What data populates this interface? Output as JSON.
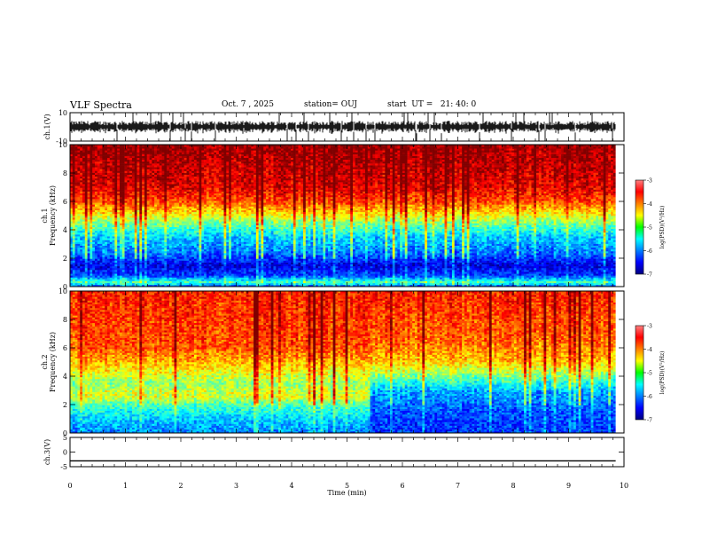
{
  "header": {
    "title": "VLF Spectra",
    "date": "Oct. 7 , 2025",
    "station": "station= OUJ",
    "start": "start  UT =   21: 40: 0"
  },
  "chart_data": [
    {
      "type": "line",
      "panel": "ch1-waveform",
      "ylabel": "ch.1(V)",
      "ylim": [
        -10,
        10
      ],
      "yticks": [
        "10",
        "-10"
      ],
      "xlim": [
        0,
        10
      ],
      "description_values": {
        "baseline": 0,
        "typical_amplitude": 3,
        "spike_amplitude": 10
      }
    },
    {
      "type": "heatmap",
      "panel": "ch1-spectrogram",
      "ylabel": "ch.1\nFrequency  (kHz)",
      "ylim": [
        0,
        10
      ],
      "yticks": [
        "0",
        "2",
        "4",
        "6",
        "8",
        "10"
      ],
      "xlim": [
        0,
        10
      ],
      "data_end_min": 9.85,
      "colorbar": {
        "label": "log(PSD)(V²/Hz)",
        "range": [
          -7,
          -3
        ],
        "ticks": [
          "-3",
          "-4",
          "-5",
          "-6",
          "-7"
        ]
      },
      "profile": [
        {
          "f_khz": 0.0,
          "level": -6.3
        },
        {
          "f_khz": 0.3,
          "level": -5.2
        },
        {
          "f_khz": 0.8,
          "level": -6.3
        },
        {
          "f_khz": 1.5,
          "level": -6.6
        },
        {
          "f_khz": 2.5,
          "level": -6.0
        },
        {
          "f_khz": 3.5,
          "level": -5.7
        },
        {
          "f_khz": 4.5,
          "level": -5.0
        },
        {
          "f_khz": 5.2,
          "level": -4.4
        },
        {
          "f_khz": 6.0,
          "level": -3.8
        },
        {
          "f_khz": 7.0,
          "level": -3.4
        },
        {
          "f_khz": 10.0,
          "level": -3.1
        }
      ]
    },
    {
      "type": "heatmap",
      "panel": "ch2-spectrogram",
      "ylabel": "ch.2\nFrequency  (kHz)",
      "ylim": [
        0,
        10
      ],
      "yticks": [
        "0",
        "2",
        "4",
        "6",
        "8",
        "10"
      ],
      "xlim": [
        0,
        10
      ],
      "data_end_min": 9.85,
      "regime_change_min": 5.4,
      "colorbar": {
        "label": "log(PSD)(V²/Hz)",
        "range": [
          -7,
          -3
        ],
        "ticks": [
          "-3",
          "-4",
          "-5",
          "-6",
          "-7"
        ]
      },
      "profile_before": [
        {
          "f_khz": 0.0,
          "level": -6.0
        },
        {
          "f_khz": 1.2,
          "level": -5.6
        },
        {
          "f_khz": 2.0,
          "level": -5.2
        },
        {
          "f_khz": 2.6,
          "level": -4.6
        },
        {
          "f_khz": 3.5,
          "level": -4.9
        },
        {
          "f_khz": 4.8,
          "level": -4.3
        },
        {
          "f_khz": 6.0,
          "level": -3.8
        },
        {
          "f_khz": 10.0,
          "level": -3.6
        }
      ],
      "profile_after": [
        {
          "f_khz": 0.0,
          "level": -6.3
        },
        {
          "f_khz": 1.5,
          "level": -6.2
        },
        {
          "f_khz": 3.0,
          "level": -5.8
        },
        {
          "f_khz": 4.0,
          "level": -5.0
        },
        {
          "f_khz": 5.0,
          "level": -4.3
        },
        {
          "f_khz": 6.5,
          "level": -3.9
        },
        {
          "f_khz": 10.0,
          "level": -3.6
        }
      ]
    },
    {
      "type": "line",
      "panel": "ch3-waveform",
      "ylabel": "ch.3(V)",
      "ylim": [
        -5,
        5
      ],
      "yticks": [
        "5",
        "0",
        "-5"
      ],
      "xlim": [
        0,
        10
      ],
      "values_constant": -3
    }
  ],
  "xaxis": {
    "label": "Time  (min)",
    "range": [
      0,
      10
    ],
    "ticks": [
      "0",
      "1",
      "2",
      "3",
      "4",
      "5",
      "6",
      "7",
      "8",
      "9",
      "10"
    ]
  }
}
